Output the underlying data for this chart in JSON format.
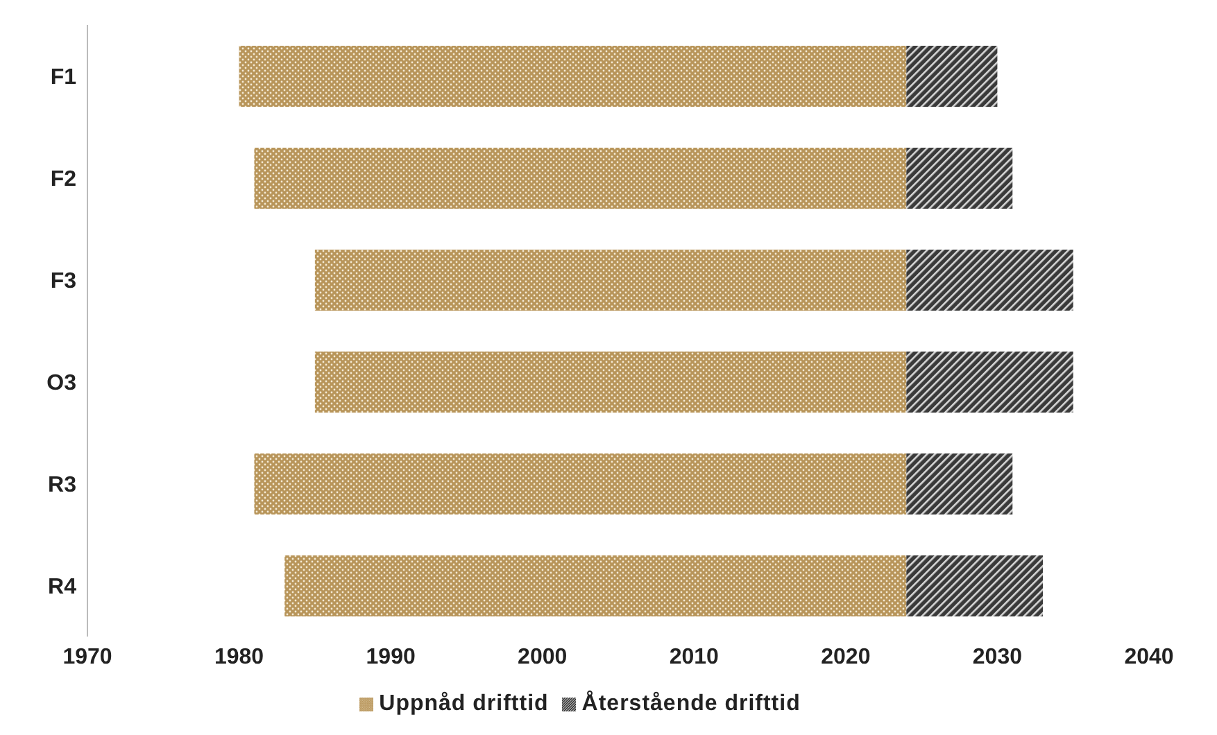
{
  "chart_data": {
    "type": "bar",
    "orientation": "horizontal",
    "categories": [
      "F1",
      "F2",
      "F3",
      "O3",
      "R3",
      "R4"
    ],
    "series": [
      {
        "name": "Uppnåd drifttid",
        "color": "#b8955a",
        "base": [
          1980,
          1981,
          1985,
          1985,
          1981,
          1983
        ],
        "values": [
          44,
          43,
          39,
          39,
          43,
          41
        ]
      },
      {
        "name": "Återstående drifttid",
        "color": "#3a3a3a",
        "base": [
          2024,
          2024,
          2024,
          2024,
          2024,
          2024
        ],
        "values": [
          6,
          7,
          11,
          11,
          7,
          9
        ]
      }
    ],
    "xlim": [
      1970,
      2040
    ],
    "xticks": [
      1970,
      1980,
      1990,
      2000,
      2010,
      2020,
      2030,
      2040
    ],
    "legend": "bottom"
  }
}
